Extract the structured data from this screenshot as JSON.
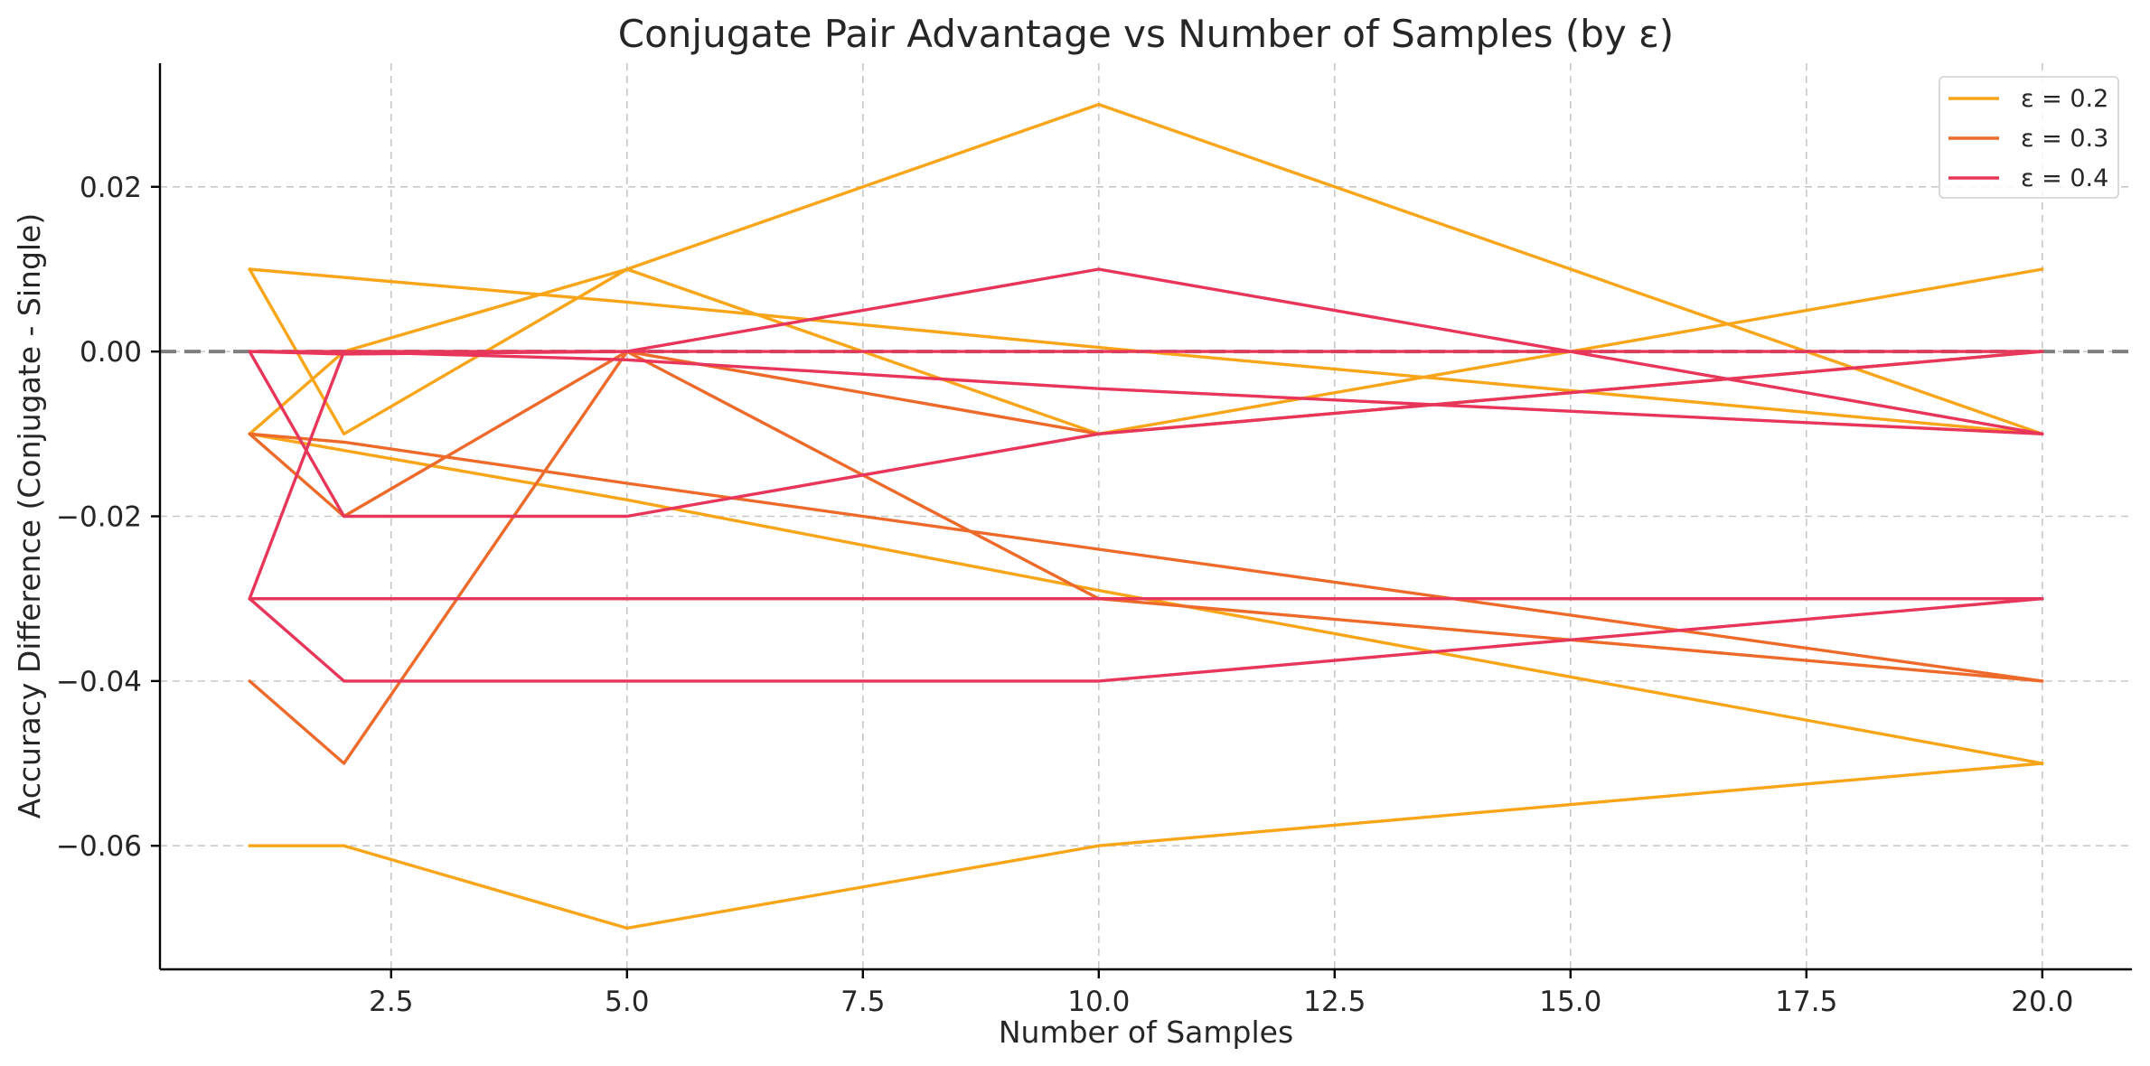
{
  "chart_data": {
    "type": "line",
    "title": "Conjugate Pair Advantage vs Number of Samples (by ε)",
    "xlabel": "Number of Samples",
    "ylabel": "Accuracy Difference (Conjugate - Single)",
    "xlim": [
      0.05,
      20.95
    ],
    "ylim": [
      -0.075,
      0.035
    ],
    "xticks": [
      2.5,
      5.0,
      7.5,
      10.0,
      12.5,
      15.0,
      17.5,
      20.0
    ],
    "xtick_labels": [
      "2.5",
      "5.0",
      "7.5",
      "10.0",
      "12.5",
      "15.0",
      "17.5",
      "20.0"
    ],
    "yticks": [
      -0.06,
      -0.04,
      -0.02,
      0.0,
      0.02
    ],
    "ytick_labels": [
      "−0.06",
      "−0.04",
      "−0.02",
      "0.00",
      "0.02"
    ],
    "grid": true,
    "legend_position": "top-right",
    "reference_line": {
      "y": 0.0,
      "style": "dashed",
      "color": "#7f7f7f"
    },
    "x": [
      1,
      2,
      5,
      10,
      20
    ],
    "legend": [
      {
        "label": "ε = 0.2",
        "color": "#F9A51A"
      },
      {
        "label": "ε = 0.3",
        "color": "#EE6A2A"
      },
      {
        "label": "ε = 0.4",
        "color": "#E8365A"
      }
    ],
    "series": [
      {
        "group": 0,
        "color": "#F9A51A",
        "values": [
          0.01,
          -0.01,
          0.01,
          -0.01,
          0.01
        ]
      },
      {
        "group": 0,
        "color": "#F9A51A",
        "values": [
          -0.01,
          0.0,
          0.01,
          0.03,
          -0.01
        ]
      },
      {
        "group": 0,
        "color": "#F9A51A",
        "values": [
          0.01,
          0.009,
          0.006,
          0.0005,
          -0.01
        ]
      },
      {
        "group": 0,
        "color": "#F9A51A",
        "values": [
          -0.01,
          -0.012,
          -0.018,
          -0.029,
          -0.05
        ]
      },
      {
        "group": 0,
        "color": "#F9A51A",
        "values": [
          -0.06,
          -0.06,
          -0.07,
          -0.06,
          -0.05
        ]
      },
      {
        "group": 1,
        "color": "#EE6A2A",
        "values": [
          -0.01,
          -0.02,
          0.0,
          -0.01,
          0.0
        ]
      },
      {
        "group": 1,
        "color": "#EE6A2A",
        "values": [
          -0.04,
          -0.05,
          0.0,
          -0.03,
          -0.04
        ]
      },
      {
        "group": 1,
        "color": "#EE6A2A",
        "values": [
          -0.01,
          -0.011,
          -0.016,
          -0.024,
          -0.04
        ]
      },
      {
        "group": 1,
        "color": "#EE6A2A",
        "values": [
          -0.03,
          -0.03,
          -0.03,
          -0.03,
          -0.03
        ]
      },
      {
        "group": 2,
        "color": "#E8365A",
        "values": [
          0.0,
          -0.02,
          -0.02,
          -0.01,
          0.0
        ]
      },
      {
        "group": 2,
        "color": "#E8365A",
        "values": [
          0.0,
          -0.0003,
          0.0,
          0.01,
          -0.01
        ]
      },
      {
        "group": 2,
        "color": "#E8365A",
        "values": [
          -0.03,
          0.0,
          -0.001,
          -0.0045,
          -0.01
        ]
      },
      {
        "group": 2,
        "color": "#E8365A",
        "values": [
          -0.03,
          -0.04,
          -0.04,
          -0.04,
          -0.03
        ]
      },
      {
        "group": 2,
        "color": "#E8365A",
        "values": [
          -0.03,
          -0.03,
          -0.03,
          -0.03,
          -0.03
        ]
      },
      {
        "group": 2,
        "color": "#E8365A",
        "values": [
          0.0,
          0.0,
          0.0,
          0.0,
          0.0
        ]
      }
    ]
  }
}
